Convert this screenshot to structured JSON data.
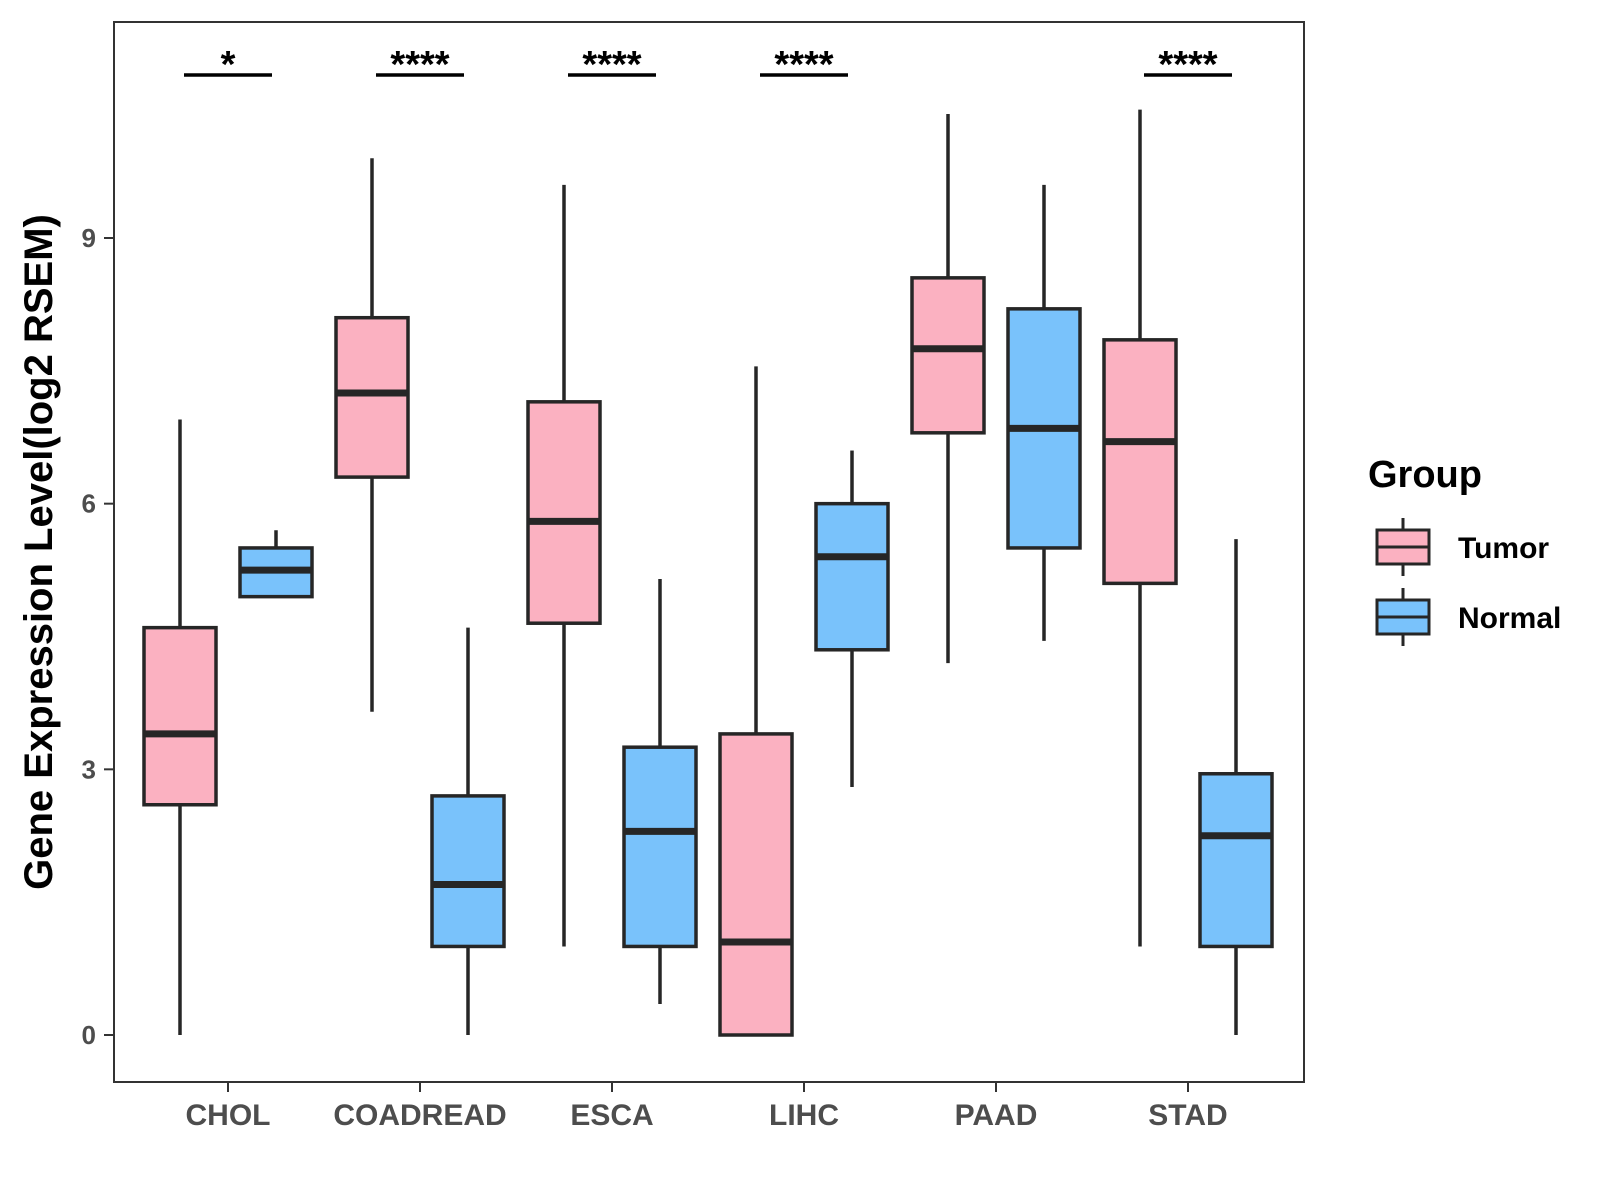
{
  "chart_data": {
    "type": "boxplot",
    "title": "",
    "xlabel": "",
    "ylabel": "Gene Expression Level(log2 RSEM)",
    "ylim": [
      -0.55,
      11.4
    ],
    "yticks": [
      0,
      3,
      6,
      9
    ],
    "grid": false,
    "legend": {
      "title": "Group",
      "position": "right",
      "entries": [
        {
          "name": "Tumor",
          "color": "#fbb1c1"
        },
        {
          "name": "Normal",
          "color": "#79c2fb"
        }
      ]
    },
    "categories": [
      "CHOL",
      "COADREAD",
      "ESCA",
      "LIHC",
      "PAAD",
      "STAD"
    ],
    "significance": [
      "*",
      "****",
      "****",
      "****",
      "",
      "****"
    ],
    "series": [
      {
        "name": "Tumor",
        "color": "#fbb1c1",
        "boxes": [
          {
            "min": 0.0,
            "q1": 2.6,
            "median": 3.4,
            "q3": 4.6,
            "max": 6.95
          },
          {
            "min": 3.65,
            "q1": 6.3,
            "median": 7.25,
            "q3": 8.1,
            "max": 9.9
          },
          {
            "min": 1.0,
            "q1": 4.65,
            "median": 5.8,
            "q3": 7.15,
            "max": 9.6
          },
          {
            "min": 0.0,
            "q1": 0.0,
            "median": 1.05,
            "q3": 3.4,
            "max": 7.55
          },
          {
            "min": 4.2,
            "q1": 6.8,
            "median": 7.75,
            "q3": 8.55,
            "max": 10.4
          },
          {
            "min": 1.0,
            "q1": 5.1,
            "median": 6.7,
            "q3": 7.85,
            "max": 10.45
          }
        ]
      },
      {
        "name": "Normal",
        "color": "#79c2fb",
        "boxes": [
          {
            "min": 4.95,
            "q1": 4.95,
            "median": 5.25,
            "q3": 5.5,
            "max": 5.7
          },
          {
            "min": 0.0,
            "q1": 1.0,
            "median": 1.7,
            "q3": 2.7,
            "max": 4.6
          },
          {
            "min": 0.35,
            "q1": 1.0,
            "median": 2.3,
            "q3": 3.25,
            "max": 5.15
          },
          {
            "min": 2.8,
            "q1": 4.35,
            "median": 5.4,
            "q3": 6.0,
            "max": 6.6
          },
          {
            "min": 4.45,
            "q1": 5.5,
            "median": 6.85,
            "q3": 8.2,
            "max": 9.6
          },
          {
            "min": 0.0,
            "q1": 1.0,
            "median": 2.25,
            "q3": 2.95,
            "max": 5.6
          }
        ]
      }
    ]
  }
}
